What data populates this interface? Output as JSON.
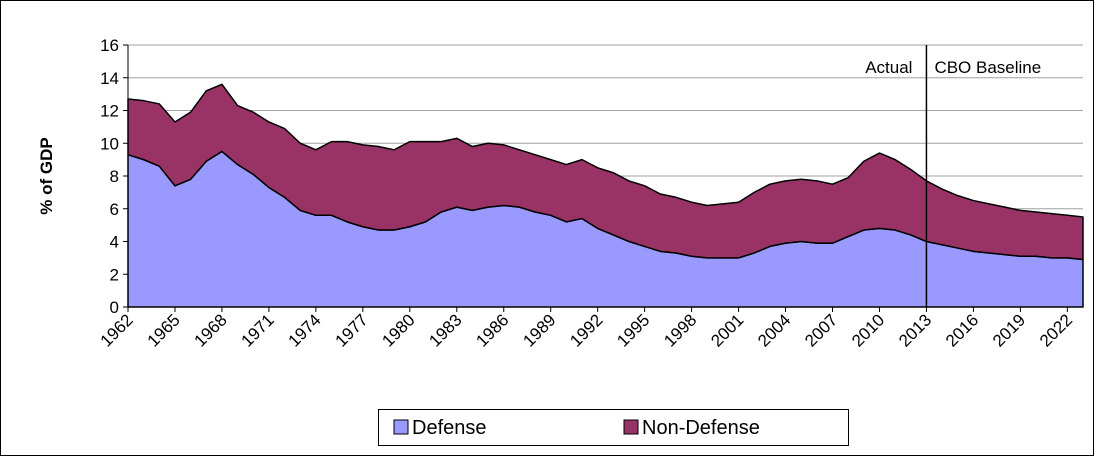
{
  "chart_data": {
    "type": "stacked-area",
    "y_label": "% of GDP",
    "x": [
      1962,
      1963,
      1964,
      1965,
      1966,
      1967,
      1968,
      1969,
      1970,
      1971,
      1972,
      1973,
      1974,
      1975,
      1976,
      1977,
      1978,
      1979,
      1980,
      1981,
      1982,
      1983,
      1984,
      1985,
      1986,
      1987,
      1988,
      1989,
      1990,
      1991,
      1992,
      1993,
      1994,
      1995,
      1996,
      1997,
      1998,
      1999,
      2000,
      2001,
      2002,
      2003,
      2004,
      2005,
      2006,
      2007,
      2008,
      2009,
      2010,
      2011,
      2012,
      2013,
      2014,
      2015,
      2016,
      2017,
      2018,
      2019,
      2020,
      2021,
      2022,
      2023
    ],
    "series": [
      {
        "name": "Defense",
        "color": "#9999ff",
        "values": [
          9.3,
          9.0,
          8.6,
          7.4,
          7.8,
          8.9,
          9.5,
          8.7,
          8.1,
          7.3,
          6.7,
          5.9,
          5.6,
          5.6,
          5.2,
          4.9,
          4.7,
          4.7,
          4.9,
          5.2,
          5.8,
          6.1,
          5.9,
          6.1,
          6.2,
          6.1,
          5.8,
          5.6,
          5.2,
          5.4,
          4.8,
          4.4,
          4.0,
          3.7,
          3.4,
          3.3,
          3.1,
          3.0,
          3.0,
          3.0,
          3.3,
          3.7,
          3.9,
          4.0,
          3.9,
          3.9,
          4.3,
          4.7,
          4.8,
          4.7,
          4.4,
          4.0,
          3.8,
          3.6,
          3.4,
          3.3,
          3.2,
          3.1,
          3.1,
          3.0,
          3.0,
          2.9
        ]
      },
      {
        "name": "Non-Defense",
        "color": "#993366",
        "values": [
          3.4,
          3.6,
          3.8,
          3.9,
          4.1,
          4.3,
          4.1,
          3.6,
          3.8,
          4.0,
          4.2,
          4.1,
          4.0,
          4.5,
          4.9,
          5.0,
          5.1,
          4.9,
          5.2,
          4.9,
          4.3,
          4.2,
          3.9,
          3.9,
          3.7,
          3.5,
          3.5,
          3.4,
          3.5,
          3.6,
          3.7,
          3.8,
          3.7,
          3.7,
          3.5,
          3.4,
          3.3,
          3.2,
          3.3,
          3.4,
          3.7,
          3.8,
          3.8,
          3.8,
          3.8,
          3.6,
          3.6,
          4.2,
          4.6,
          4.3,
          4.0,
          3.7,
          3.4,
          3.2,
          3.1,
          3.0,
          2.9,
          2.8,
          2.7,
          2.7,
          2.6,
          2.6
        ]
      }
    ],
    "xlim": [
      1962,
      2023
    ],
    "xticks": [
      1962,
      1965,
      1968,
      1971,
      1974,
      1977,
      1980,
      1983,
      1986,
      1989,
      1992,
      1995,
      1998,
      2001,
      2004,
      2007,
      2010,
      2013,
      2016,
      2019,
      2022
    ],
    "ylim": [
      0,
      16
    ],
    "yticks": [
      0,
      2,
      4,
      6,
      8,
      10,
      12,
      14,
      16
    ],
    "grid": true,
    "divider": {
      "x": 2013,
      "left_label": "Actual",
      "right_label": "CBO Baseline"
    },
    "legend": "bottom"
  }
}
